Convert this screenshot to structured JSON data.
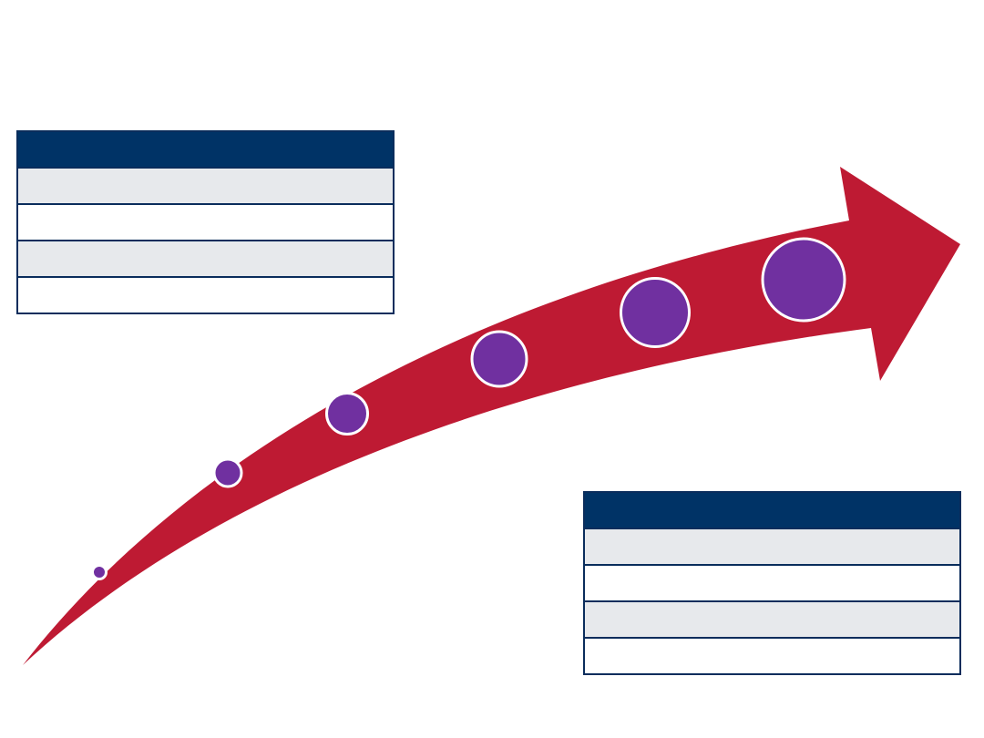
{
  "colors": {
    "arrow": "#be1a33",
    "milestone": "#7030a0",
    "milestone_outline": "#ffffff",
    "table_header": "#003366",
    "table_border": "#0a2d5c",
    "row_shade": "#e7e9ec",
    "row_plain": "#ffffff"
  },
  "diagram": {
    "type": "growth-arrow",
    "milestones": [
      {
        "size": 1
      },
      {
        "size": 2
      },
      {
        "size": 3
      },
      {
        "size": 4
      },
      {
        "size": 5
      },
      {
        "size": 6
      }
    ]
  },
  "tables": {
    "top_left": {
      "header": "",
      "rows": [
        "",
        "",
        "",
        ""
      ]
    },
    "bottom_right": {
      "header": "",
      "rows": [
        "",
        "",
        "",
        ""
      ]
    }
  }
}
